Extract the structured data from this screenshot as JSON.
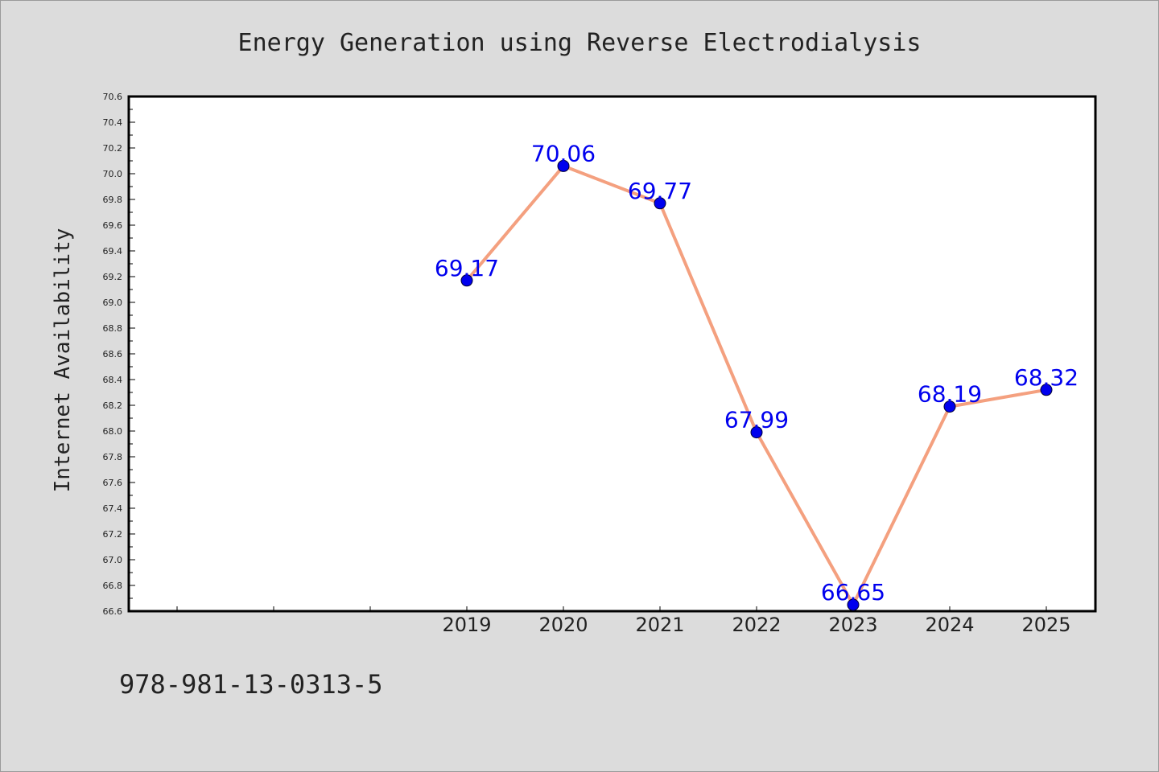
{
  "chart_data": {
    "type": "line",
    "title": "Energy Generation using Reverse Electrodialysis",
    "xlabel": "",
    "ylabel": "Internet Availability",
    "x": [
      "2019",
      "2020",
      "2021",
      "2022",
      "2023",
      "2024",
      "2025"
    ],
    "series": [
      {
        "values": [
          69.17,
          70.06,
          69.77,
          67.99,
          66.65,
          68.19,
          68.32
        ],
        "data_labels": [
          "69.17",
          "70.06",
          "69.77",
          "67.99",
          "66.65",
          "68.19",
          "68.32"
        ],
        "line_color": "#f4a07f",
        "marker_color": "#0000ee"
      }
    ],
    "ylim": [
      66.6,
      70.6
    ],
    "yticks": [
      "66.6",
      "66.8",
      "67.0",
      "67.2",
      "67.4",
      "67.6",
      "67.8",
      "68.0",
      "68.2",
      "68.4",
      "68.6",
      "68.8",
      "69.0",
      "69.2",
      "69.4",
      "69.6",
      "69.8",
      "70.0",
      "70.2",
      "70.4",
      "70.6"
    ],
    "grid": false,
    "label_color": "#0000ee"
  },
  "footer": {
    "isbn": "978-981-13-0313-5"
  },
  "colors": {
    "background": "#dcdcdc",
    "plot_background": "#ffffff"
  }
}
